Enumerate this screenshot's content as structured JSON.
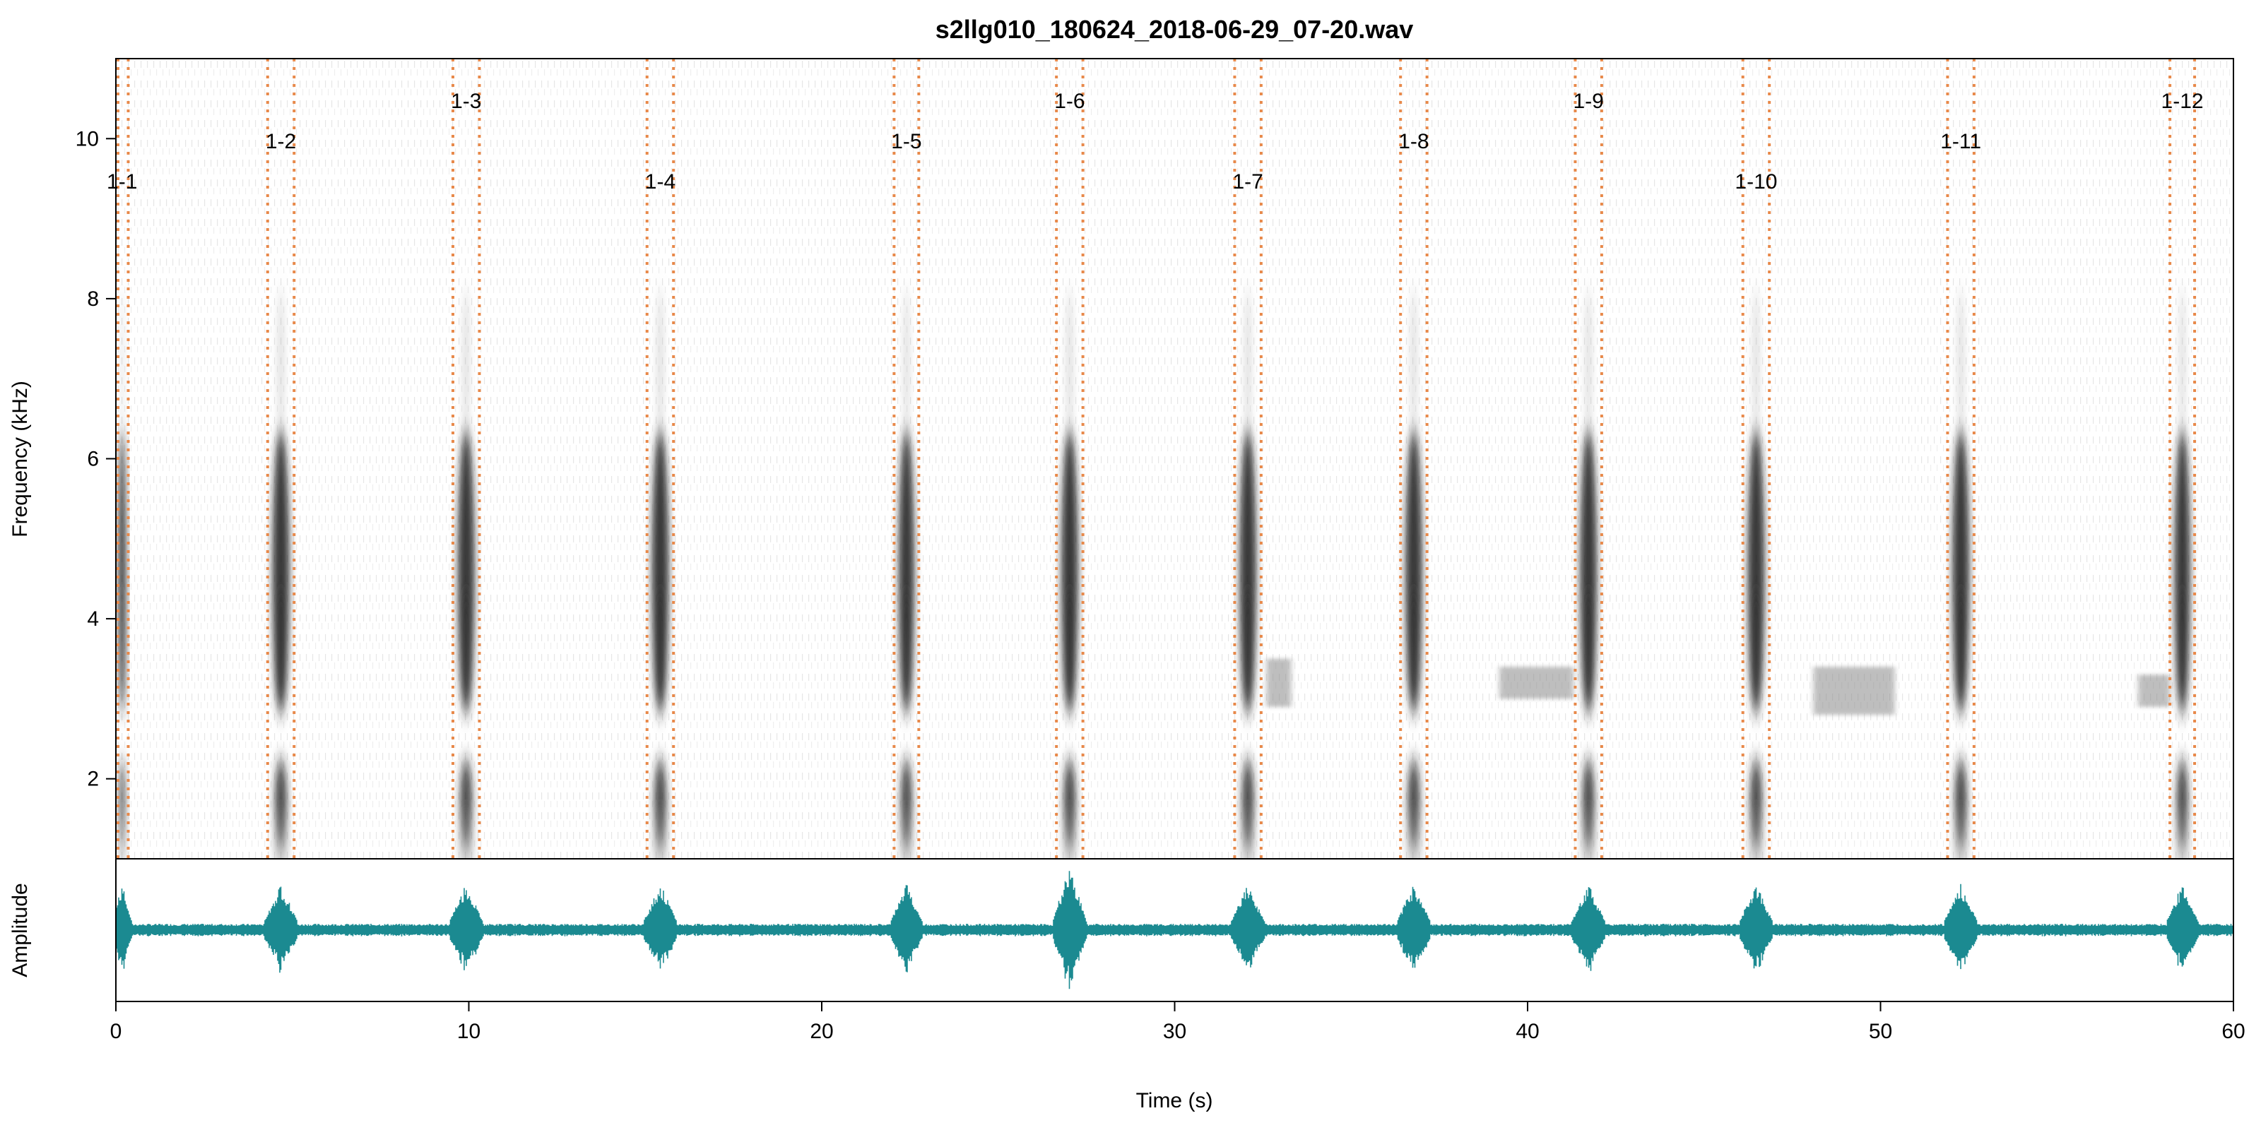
{
  "chart_data": {
    "type": "spectrogram",
    "title": "s2llg010_180624_2018-06-29_07-20.wav",
    "xlabel": "Time (s)",
    "spectrogram_ylabel": "Frequency (kHz)",
    "oscillogram_ylabel": "Amplitude",
    "xlim": [
      0,
      60
    ],
    "ylim_khz": [
      1,
      11
    ],
    "x_ticks": [
      0,
      10,
      20,
      30,
      40,
      50,
      60
    ],
    "y_ticks_khz": [
      2,
      4,
      6,
      8,
      10
    ],
    "boundary_color": "#e8894a",
    "waveform_color": "#1b8a91",
    "calls": [
      {
        "label": "1-1",
        "start": 0.0,
        "end": 0.35,
        "label_row": 3
      },
      {
        "label": "1-2",
        "start": 4.3,
        "end": 5.05,
        "label_row": 2
      },
      {
        "label": "1-3",
        "start": 9.55,
        "end": 10.3,
        "label_row": 1
      },
      {
        "label": "1-4",
        "start": 15.05,
        "end": 15.8,
        "label_row": 3
      },
      {
        "label": "1-5",
        "start": 22.05,
        "end": 22.75,
        "label_row": 2
      },
      {
        "label": "1-6",
        "start": 26.65,
        "end": 27.4,
        "label_row": 1
      },
      {
        "label": "1-7",
        "start": 31.7,
        "end": 32.45,
        "label_row": 3
      },
      {
        "label": "1-8",
        "start": 36.4,
        "end": 37.15,
        "label_row": 2
      },
      {
        "label": "1-9",
        "start": 41.35,
        "end": 42.1,
        "label_row": 1
      },
      {
        "label": "1-10",
        "start": 46.1,
        "end": 46.85,
        "label_row": 3
      },
      {
        "label": "1-11",
        "start": 51.9,
        "end": 52.65,
        "label_row": 2
      },
      {
        "label": "1-12",
        "start": 58.2,
        "end": 58.9,
        "label_row": 1
      }
    ],
    "faint_bands": [
      {
        "start": 32.6,
        "end": 33.3,
        "low_khz": 2.9,
        "high_khz": 3.5
      },
      {
        "start": 39.2,
        "end": 41.3,
        "low_khz": 3.0,
        "high_khz": 3.4
      },
      {
        "start": 48.1,
        "end": 50.4,
        "low_khz": 2.8,
        "high_khz": 3.4
      },
      {
        "start": 57.3,
        "end": 58.2,
        "low_khz": 2.9,
        "high_khz": 3.3
      }
    ]
  }
}
